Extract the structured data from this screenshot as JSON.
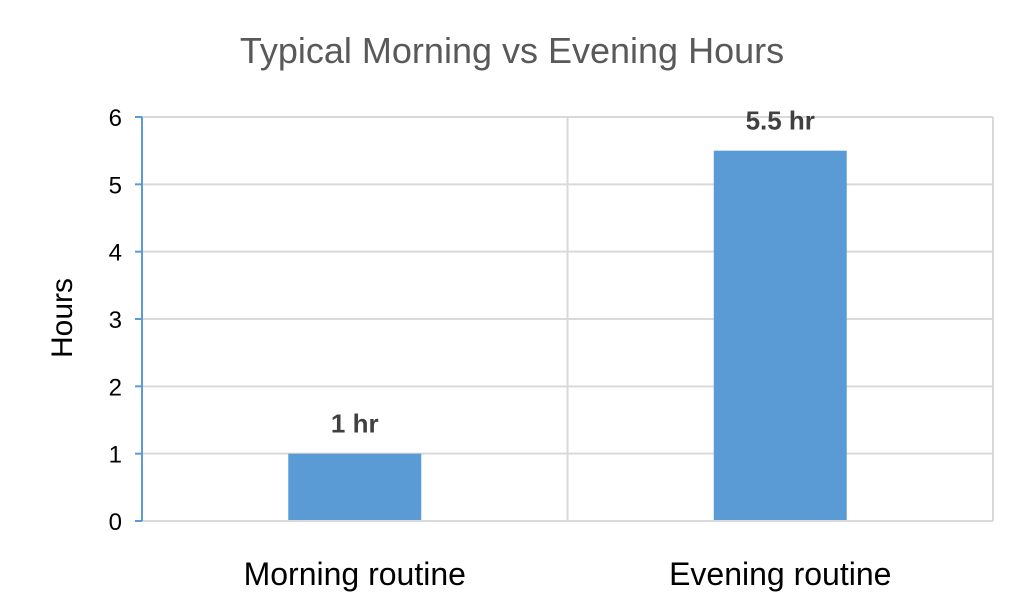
{
  "chart_data": {
    "type": "bar",
    "title": "Typical Morning vs Evening Hours",
    "ylabel": "Hours",
    "xlabel": "",
    "categories": [
      "Morning routine",
      "Evening routine"
    ],
    "values": [
      1,
      5.5
    ],
    "data_labels": [
      "1 hr",
      "5.5 hr"
    ],
    "ylim": [
      0,
      6
    ],
    "yticks": [
      0,
      1,
      2,
      3,
      4,
      5,
      6
    ],
    "grid": true,
    "legend": "none",
    "colors": {
      "bar": "#5b9bd5",
      "axis": "#5b9bd5",
      "grid": "#d9d9d9",
      "title": "#595959",
      "data_label": "#404040"
    }
  }
}
